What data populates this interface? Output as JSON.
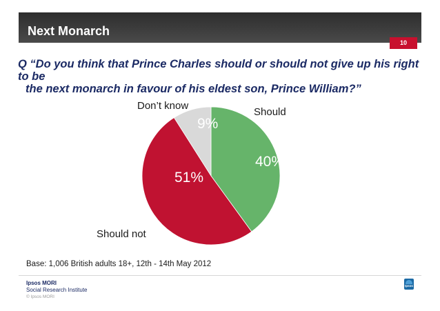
{
  "header": {
    "title": "Next  Monarch",
    "page_number": "10"
  },
  "question": {
    "line1": "Q “Do you think that Prince Charles should or should not give up his right to be",
    "line2": "the next monarch in favour of his eldest son, Prince William?”"
  },
  "chart_data": {
    "type": "pie",
    "start_angle_deg": 0,
    "direction": "clockwise",
    "slices": [
      {
        "label": "Should",
        "value": 40,
        "value_label": "40%",
        "color": "#66b46a",
        "pct_color": "#ffffff"
      },
      {
        "label": "Should not",
        "value": 51,
        "value_label": "51%",
        "color": "#c01231",
        "pct_color": "#ffffff"
      },
      {
        "label": "Don’t know",
        "value": 9,
        "value_label": "9%",
        "color": "#d9d9d9",
        "pct_color": "#ffffff"
      }
    ]
  },
  "base": "Base: 1,006 British adults 18+, 12th - 14th May 2012",
  "footer": {
    "org_name": "Ipsos MORI",
    "org_subtitle": "Social Research Institute",
    "copyright": "© Ipsos MORI",
    "logo_text": "Ipsos"
  }
}
